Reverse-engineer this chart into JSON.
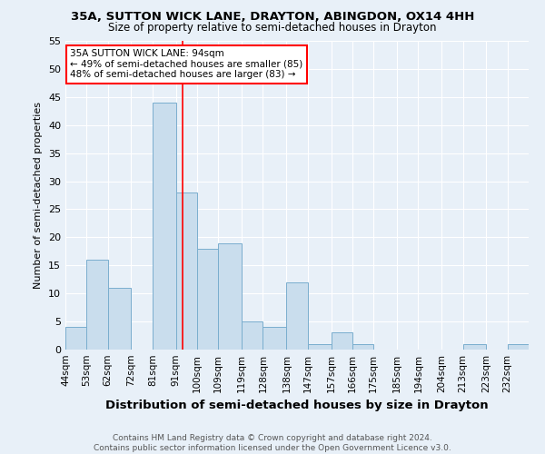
{
  "title1": "35A, SUTTON WICK LANE, DRAYTON, ABINGDON, OX14 4HH",
  "title2": "Size of property relative to semi-detached houses in Drayton",
  "xlabel": "Distribution of semi-detached houses by size in Drayton",
  "ylabel": "Number of semi-detached properties",
  "footnote": "Contains HM Land Registry data © Crown copyright and database right 2024.\nContains public sector information licensed under the Open Government Licence v3.0.",
  "bin_labels": [
    "44sqm",
    "53sqm",
    "62sqm",
    "72sqm",
    "81sqm",
    "91sqm",
    "100sqm",
    "109sqm",
    "119sqm",
    "128sqm",
    "138sqm",
    "147sqm",
    "157sqm",
    "166sqm",
    "175sqm",
    "185sqm",
    "194sqm",
    "204sqm",
    "213sqm",
    "223sqm",
    "232sqm"
  ],
  "bar_values": [
    4,
    16,
    11,
    0,
    44,
    28,
    18,
    19,
    5,
    4,
    12,
    1,
    3,
    1,
    0,
    0,
    0,
    0,
    1,
    0,
    1
  ],
  "bar_color": "#c9dded",
  "bar_edge_color": "#7aaece",
  "property_value": 94,
  "bin_edges": [
    44,
    53,
    62,
    72,
    81,
    91,
    100,
    109,
    119,
    128,
    138,
    147,
    157,
    166,
    175,
    185,
    194,
    204,
    213,
    223,
    232,
    241
  ],
  "annotation_title": "35A SUTTON WICK LANE: 94sqm",
  "annotation_line1": "← 49% of semi-detached houses are smaller (85)",
  "annotation_line2": "48% of semi-detached houses are larger (83) →",
  "annotation_box_color": "white",
  "annotation_box_edge": "red",
  "vline_color": "red",
  "ylim": [
    0,
    55
  ],
  "yticks": [
    0,
    5,
    10,
    15,
    20,
    25,
    30,
    35,
    40,
    45,
    50,
    55
  ],
  "background_color": "#e8f0f8",
  "grid_color": "white",
  "title1_fontsize": 9.5,
  "title2_fontsize": 8.5,
  "ylabel_fontsize": 8,
  "xlabel_fontsize": 9.5,
  "footnote_fontsize": 6.5,
  "footnote_color": "#555555",
  "tick_labelsize": 8,
  "xtick_labelsize": 7.5
}
